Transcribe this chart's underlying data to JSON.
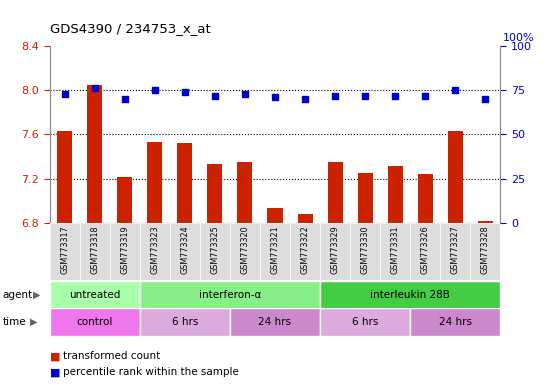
{
  "title": "GDS4390 / 234753_x_at",
  "samples": [
    "GSM773317",
    "GSM773318",
    "GSM773319",
    "GSM773323",
    "GSM773324",
    "GSM773325",
    "GSM773320",
    "GSM773321",
    "GSM773322",
    "GSM773329",
    "GSM773330",
    "GSM773331",
    "GSM773326",
    "GSM773327",
    "GSM773328"
  ],
  "bar_values": [
    7.63,
    8.05,
    7.21,
    7.53,
    7.52,
    7.33,
    7.35,
    6.93,
    6.88,
    7.35,
    7.25,
    7.31,
    7.24,
    7.63,
    6.82
  ],
  "dot_values": [
    73,
    76,
    70,
    75,
    74,
    72,
    73,
    71,
    70,
    72,
    72,
    72,
    72,
    75,
    70
  ],
  "ylim_left": [
    6.8,
    8.4
  ],
  "ylim_right": [
    0,
    100
  ],
  "yticks_left": [
    6.8,
    7.2,
    7.6,
    8.0,
    8.4
  ],
  "yticks_right": [
    0,
    25,
    50,
    75,
    100
  ],
  "bar_color": "#cc2200",
  "dot_color": "#0000cc",
  "grid_color": "#000000",
  "agent_labels": [
    {
      "text": "untreated",
      "start": 0,
      "end": 3,
      "color": "#aaffaa"
    },
    {
      "text": "interferon-α",
      "start": 3,
      "end": 9,
      "color": "#88ee88"
    },
    {
      "text": "interleukin 28B",
      "start": 9,
      "end": 15,
      "color": "#44cc44"
    }
  ],
  "time_labels": [
    {
      "text": "control",
      "start": 0,
      "end": 3,
      "color": "#ee77ee"
    },
    {
      "text": "6 hrs",
      "start": 3,
      "end": 6,
      "color": "#ddaadd"
    },
    {
      "text": "24 hrs",
      "start": 6,
      "end": 9,
      "color": "#cc88cc"
    },
    {
      "text": "6 hrs",
      "start": 9,
      "end": 12,
      "color": "#ddaadd"
    },
    {
      "text": "24 hrs",
      "start": 12,
      "end": 15,
      "color": "#cc88cc"
    }
  ],
  "legend_bar_label": "transformed count",
  "legend_dot_label": "percentile rank within the sample",
  "tick_color_left": "#cc2200",
  "tick_color_right": "#0000cc",
  "plot_bg": "#ffffff",
  "fig_bg": "#ffffff"
}
